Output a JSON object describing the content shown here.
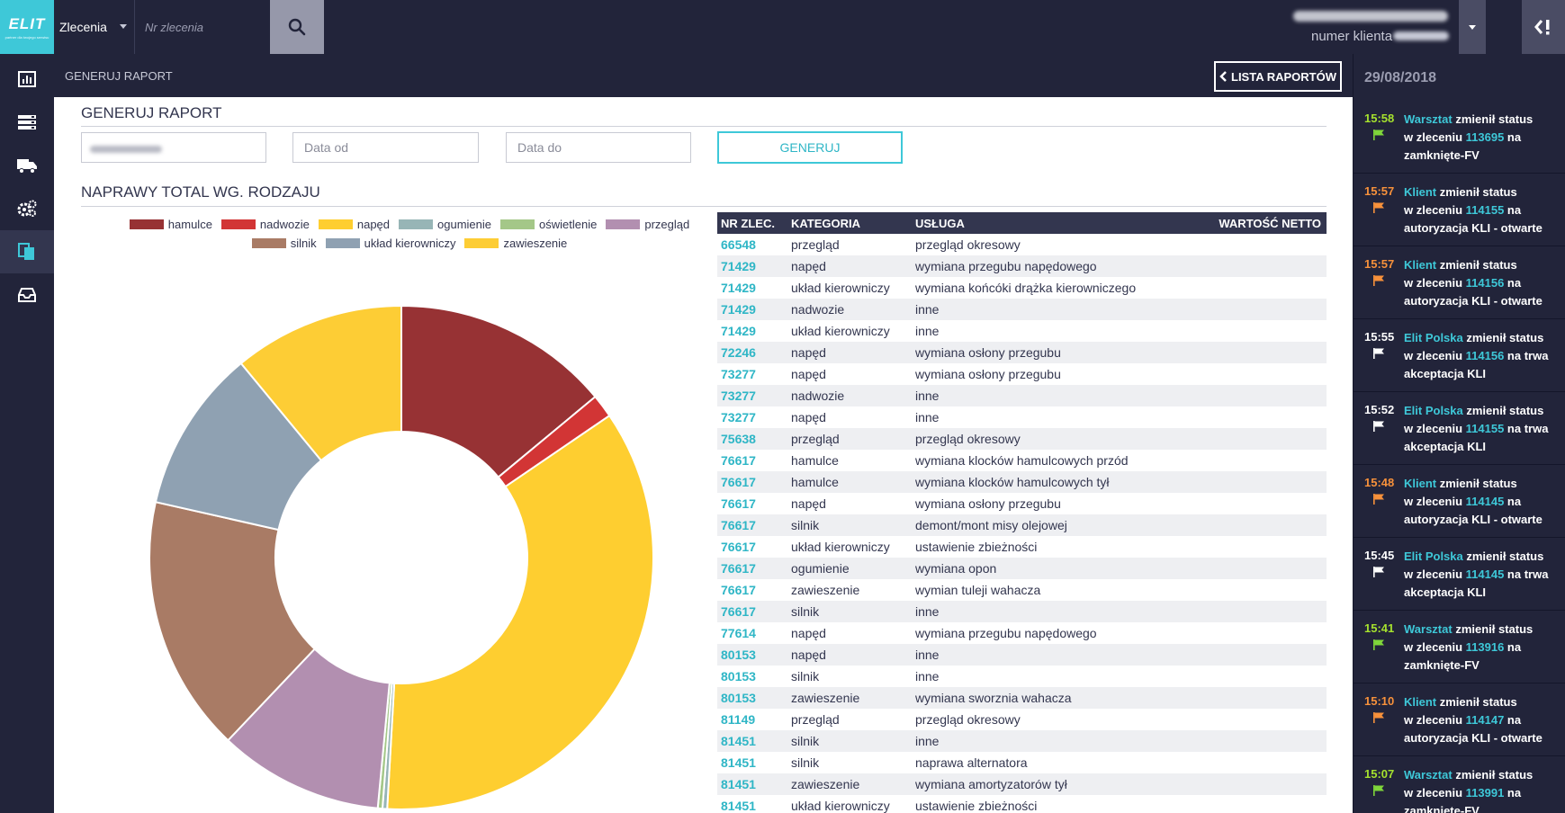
{
  "header": {
    "logo_text": "ELIT",
    "logo_subtitle": "partner dla twojego serwisu",
    "select_value": "Zlecenia",
    "order_placeholder": "Nr zlecenia",
    "client_label": "numer klienta"
  },
  "subheader": {
    "title": "GENERUJ RAPORT",
    "list_button": "LISTA RAPORTÓW"
  },
  "form": {
    "title": "GENERUJ RAPORT",
    "date_from_placeholder": "Data od",
    "date_to_placeholder": "Data do",
    "generate_button": "GENERUJ"
  },
  "chart_section_title": "NAPRAWY TOTAL WG. RODZAJU",
  "chart_data": {
    "type": "pie",
    "title": "",
    "donut": true,
    "legend_position": "top",
    "categories": [
      "hamulce",
      "nadwozie",
      "napęd",
      "ogumienie",
      "oświetlenie",
      "przegląd",
      "silnik",
      "układ kierowniczy",
      "zawieszenie"
    ],
    "colors": [
      "#973234",
      "#d23535",
      "#fece30",
      "#97b5b6",
      "#a4c788",
      "#b28fb0",
      "#a97b65",
      "#8fa1b2",
      "#fdcd35"
    ],
    "values": [
      14,
      1.5,
      35.5,
      0.3,
      0.3,
      10.6,
      16.5,
      10.5,
      11
    ]
  },
  "table": {
    "headers": [
      "NR ZLEC.",
      "KATEGORIA",
      "USŁUGA",
      "WARTOŚĆ NETTO"
    ],
    "rows": [
      [
        "66548",
        "przegląd",
        "przegląd okresowy"
      ],
      [
        "71429",
        "napęd",
        "wymiana przegubu napędowego"
      ],
      [
        "71429",
        "układ kierowniczy",
        "wymiana końcóki drążka kierowniczego"
      ],
      [
        "71429",
        "nadwozie",
        "inne"
      ],
      [
        "71429",
        "układ kierowniczy",
        "inne"
      ],
      [
        "72246",
        "napęd",
        "wymiana osłony przegubu"
      ],
      [
        "73277",
        "napęd",
        "wymiana osłony przegubu"
      ],
      [
        "73277",
        "nadwozie",
        "inne"
      ],
      [
        "73277",
        "napęd",
        "inne"
      ],
      [
        "75638",
        "przegląd",
        "przegląd okresowy"
      ],
      [
        "76617",
        "hamulce",
        "wymiana klocków hamulcowych przód"
      ],
      [
        "76617",
        "hamulce",
        "wymiana klocków hamulcowych tył"
      ],
      [
        "76617",
        "napęd",
        "wymiana osłony przegubu"
      ],
      [
        "76617",
        "silnik",
        "demont/mont misy olejowej"
      ],
      [
        "76617",
        "układ kierowniczy",
        "ustawienie zbieżności"
      ],
      [
        "76617",
        "ogumienie",
        "wymiana opon"
      ],
      [
        "76617",
        "zawieszenie",
        "wymian tuleji wahacza"
      ],
      [
        "76617",
        "silnik",
        "inne"
      ],
      [
        "77614",
        "napęd",
        "wymiana przegubu napędowego"
      ],
      [
        "80153",
        "napęd",
        "inne"
      ],
      [
        "80153",
        "silnik",
        "inne"
      ],
      [
        "80153",
        "zawieszenie",
        "wymiana sworznia wahacza"
      ],
      [
        "81149",
        "przegląd",
        "przegląd okresowy"
      ],
      [
        "81451",
        "silnik",
        "inne"
      ],
      [
        "81451",
        "silnik",
        "naprawa alternatora"
      ],
      [
        "81451",
        "zawieszenie",
        "wymiana amortyzatorów tył"
      ],
      [
        "81451",
        "układ kierowniczy",
        "ustawienie zbieżności"
      ]
    ]
  },
  "notifications": {
    "date": "29/08/2018",
    "items": [
      {
        "time": "15:58",
        "time_color": "#a6e22e",
        "flag_color": "#7fd63a",
        "actor": "Warsztat",
        "actor_color": "#3ec8d8",
        "text1": " zmienił status",
        "text2": "w zleceniu ",
        "order": "113695",
        "text3": " na",
        "text4": "zamknięte-FV"
      },
      {
        "time": "15:57",
        "time_color": "#f7913b",
        "flag_color": "#f7913b",
        "actor": "Klient",
        "actor_color": "#3ec8d8",
        "text1": " zmienił status",
        "text2": "w zleceniu ",
        "order": "114155",
        "text3": " na",
        "text4": "autoryzacja KLI - otwarte"
      },
      {
        "time": "15:57",
        "time_color": "#f7913b",
        "flag_color": "#f7913b",
        "actor": "Klient",
        "actor_color": "#3ec8d8",
        "text1": " zmienił status",
        "text2": "w zleceniu ",
        "order": "114156",
        "text3": " na",
        "text4": "autoryzacja KLI - otwarte"
      },
      {
        "time": "15:55",
        "time_color": "#ffffff",
        "flag_color": "#ffffff",
        "actor": "Elit Polska",
        "actor_color": "#3ec8d8",
        "text1": " zmienił status",
        "text2": "w zleceniu ",
        "order": "114156",
        "text3": " na trwa",
        "text4": "akceptacja KLI"
      },
      {
        "time": "15:52",
        "time_color": "#ffffff",
        "flag_color": "#ffffff",
        "actor": "Elit Polska",
        "actor_color": "#3ec8d8",
        "text1": " zmienił status",
        "text2": "w zleceniu ",
        "order": "114155",
        "text3": " na trwa",
        "text4": "akceptacja KLI"
      },
      {
        "time": "15:48",
        "time_color": "#f7913b",
        "flag_color": "#f7913b",
        "actor": "Klient",
        "actor_color": "#3ec8d8",
        "text1": " zmienił status",
        "text2": "w zleceniu ",
        "order": "114145",
        "text3": " na",
        "text4": "autoryzacja KLI - otwarte"
      },
      {
        "time": "15:45",
        "time_color": "#ffffff",
        "flag_color": "#ffffff",
        "actor": "Elit Polska",
        "actor_color": "#3ec8d8",
        "text1": " zmienił status",
        "text2": "w zleceniu ",
        "order": "114145",
        "text3": " na trwa",
        "text4": "akceptacja KLI"
      },
      {
        "time": "15:41",
        "time_color": "#a6e22e",
        "flag_color": "#7fd63a",
        "actor": "Warsztat",
        "actor_color": "#3ec8d8",
        "text1": " zmienił status",
        "text2": "w zleceniu ",
        "order": "113916",
        "text3": " na",
        "text4": "zamknięte-FV"
      },
      {
        "time": "15:10",
        "time_color": "#f7913b",
        "flag_color": "#f7913b",
        "actor": "Klient",
        "actor_color": "#3ec8d8",
        "text1": " zmienił status",
        "text2": "w zleceniu ",
        "order": "114147",
        "text3": " na",
        "text4": "autoryzacja KLI - otwarte"
      },
      {
        "time": "15:07",
        "time_color": "#a6e22e",
        "flag_color": "#7fd63a",
        "actor": "Warsztat",
        "actor_color": "#3ec8d8",
        "text1": " zmienił status",
        "text2": "w zleceniu ",
        "order": "113991",
        "text3": " na",
        "text4": "zamknięte-FV"
      }
    ]
  },
  "sidebar": {
    "icons": [
      "bar-chart-icon",
      "server-icon",
      "truck-icon",
      "gears-icon",
      "documents-icon",
      "inbox-icon"
    ]
  }
}
